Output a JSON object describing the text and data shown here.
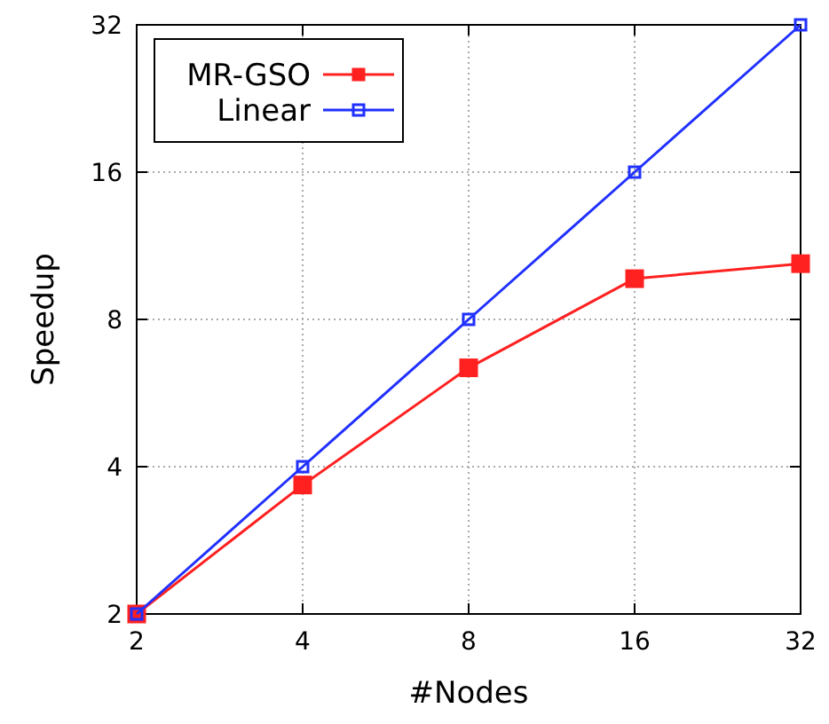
{
  "chart_data": {
    "type": "line",
    "xlabel": "#Nodes",
    "ylabel": "Speedup",
    "log": "xy",
    "x": [
      2,
      4,
      8,
      16,
      32
    ],
    "series": [
      {
        "name": "MR-GSO",
        "color": "#ff2020",
        "values": [
          2,
          3.67,
          6.37,
          9.69,
          10.4
        ]
      },
      {
        "name": "Linear",
        "color": "#2030ff",
        "values": [
          2,
          4,
          8,
          16,
          32
        ]
      }
    ],
    "xlim": [
      2,
      32
    ],
    "ylim": [
      2,
      32
    ],
    "xticks": [
      2,
      4,
      8,
      16,
      32
    ],
    "yticks": [
      2,
      4,
      8,
      16,
      32
    ],
    "grid": true,
    "legend": "top left",
    "marker": "square",
    "line_style": "solid"
  }
}
